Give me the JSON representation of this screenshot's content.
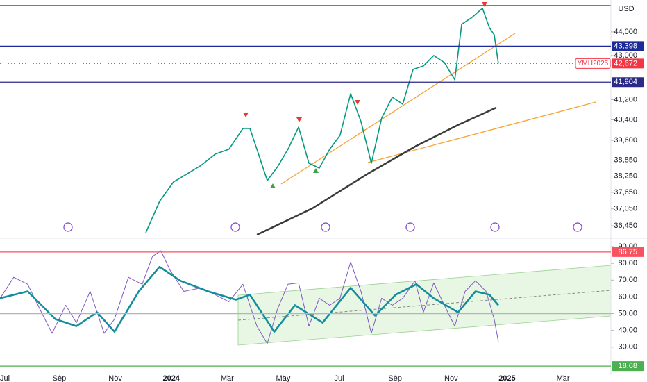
{
  "chart_data": [
    {
      "type": "line",
      "log": true,
      "unit": "USD",
      "ylim": [
        36083,
        45140
      ],
      "yticks": [
        {
          "value": 44000,
          "label": "44,000"
        },
        {
          "value": 43000,
          "label": "43,000"
        },
        {
          "value": 41200,
          "label": "41,200"
        },
        {
          "value": 40400,
          "label": "40,400"
        },
        {
          "value": 39600,
          "label": "39,600"
        },
        {
          "value": 38850,
          "label": "38,850"
        },
        {
          "value": 38250,
          "label": "38,250"
        },
        {
          "value": 37650,
          "label": "37,650"
        },
        {
          "value": 37050,
          "label": "37,050"
        },
        {
          "value": 36450,
          "label": "36,450"
        }
      ],
      "levels": [
        {
          "value": 43398,
          "label": "43,398",
          "color": "#1c2b9c",
          "style": "solid"
        },
        {
          "value": 42672,
          "label": "42,672",
          "color": "#f23645",
          "style": "dotted",
          "tag": "YMH2025"
        },
        {
          "value": 41904,
          "label": "41,904",
          "color": "#2b2a88",
          "style": "solid"
        }
      ],
      "series": [
        {
          "color": "#089981",
          "width": 1.6,
          "x": [
            5.09,
            5.58,
            6.08,
            6.58,
            7.07,
            7.57,
            8.06,
            8.56,
            8.81,
            9.06,
            9.43,
            9.8,
            10.17,
            10.55,
            10.92,
            11.29,
            11.66,
            12.03,
            12.41,
            12.78,
            13.15,
            13.52,
            13.9,
            14.27,
            14.64,
            15.01,
            15.38,
            15.76,
            16.13,
            16.38,
            16.75,
            17.12,
            17.37,
            17.54,
            17.69
          ],
          "values": [
            36205,
            37321,
            38033,
            38342,
            38654,
            39074,
            39259,
            40061,
            40061,
            39259,
            38084,
            38602,
            39259,
            40115,
            38732,
            38550,
            39259,
            39792,
            41436,
            40332,
            38732,
            40469,
            41296,
            41018,
            42426,
            42570,
            43003,
            42714,
            41999,
            44328,
            44628,
            45022,
            44179,
            43882,
            42672
          ]
        },
        {
          "color": "#3a3a3a",
          "width": 2.5,
          "x": [
            9.06,
            11.04,
            13.03,
            14.76,
            16.25,
            17.62
          ],
          "values": [
            36132,
            37070,
            38342,
            39391,
            40197,
            40881
          ]
        }
      ]
    },
    {
      "type": "line",
      "ylim": [
        13.33,
        94.17
      ],
      "yticks": [
        {
          "value": 90,
          "label": "90.00"
        },
        {
          "value": 80,
          "label": "80.00"
        },
        {
          "value": 70,
          "label": "70.00"
        },
        {
          "value": 60,
          "label": "60.00"
        },
        {
          "value": 50,
          "label": "50.00"
        },
        {
          "value": 40,
          "label": "40.00"
        },
        {
          "value": 30,
          "label": "30.00"
        }
      ],
      "xlim": [
        -0.12,
        21.71
      ],
      "xticks": [
        {
          "value": 0,
          "label": "Jul"
        },
        {
          "value": 2,
          "label": "Sep"
        },
        {
          "value": 4,
          "label": "Nov"
        },
        {
          "value": 6,
          "label": "2024"
        },
        {
          "value": 8,
          "label": "Mar"
        },
        {
          "value": 10,
          "label": "May"
        },
        {
          "value": 12,
          "label": "Jul"
        },
        {
          "value": 14,
          "label": "Sep"
        },
        {
          "value": 16,
          "label": "Nov"
        },
        {
          "value": 18,
          "label": "2025"
        },
        {
          "value": 20,
          "label": "Mar"
        }
      ],
      "levels": [
        {
          "value": 86.75,
          "label": "86.75",
          "color": "#f7525f",
          "style": "solid"
        },
        {
          "value": 50,
          "color": "#b2b5be",
          "style": "solid"
        },
        {
          "value": 18.68,
          "label": "18.68",
          "color": "#4caf50",
          "style": "solid"
        }
      ],
      "series": [
        {
          "color": "#7e57c2",
          "width": 1,
          "x": [
            -0.12,
            0.37,
            0.87,
            1.36,
            1.74,
            2.23,
            2.61,
            3.1,
            3.6,
            3.97,
            4.47,
            4.96,
            5.33,
            5.63,
            5.96,
            6.45,
            7.07,
            7.57,
            8.06,
            8.56,
            9.06,
            9.43,
            9.8,
            10.17,
            10.55,
            10.92,
            11.29,
            11.66,
            12.03,
            12.41,
            12.78,
            13.15,
            13.52,
            13.9,
            14.27,
            14.71,
            15.01,
            15.38,
            15.76,
            16.13,
            16.5,
            16.87,
            17.25,
            17.54,
            17.69
          ],
          "values": [
            59,
            71.7,
            67.5,
            50.8,
            38.3,
            55,
            44.6,
            63.3,
            38.3,
            46.7,
            71.7,
            67.5,
            84.2,
            87.5,
            75.8,
            63.3,
            65.4,
            61.3,
            57.1,
            67.5,
            42.5,
            32.1,
            52.9,
            67.5,
            68.3,
            42.5,
            59.2,
            55,
            59.2,
            80.8,
            63.3,
            38.3,
            59.2,
            55,
            59.2,
            69.6,
            50.8,
            68.3,
            55,
            42.5,
            63.3,
            69.6,
            63.3,
            46.7,
            33.3
          ]
        },
        {
          "color": "#138d9c",
          "width": 2.6,
          "x": [
            -0.12,
            0.87,
            1.86,
            2.61,
            3.35,
            3.97,
            4.84,
            5.58,
            6.33,
            7.32,
            8.31,
            8.81,
            9.68,
            10.42,
            11.41,
            12.41,
            13.28,
            14.02,
            14.76,
            15.38,
            16.25,
            16.87,
            17.37,
            17.69
          ],
          "values": [
            59.2,
            63.3,
            46.7,
            42.5,
            50.8,
            39.2,
            63.3,
            77.9,
            69.6,
            63.3,
            58.3,
            61.3,
            39.2,
            55,
            44.6,
            65.4,
            48.8,
            61.3,
            67.5,
            59.2,
            50.8,
            63.3,
            61.3,
            55
          ]
        }
      ]
    }
  ]
}
